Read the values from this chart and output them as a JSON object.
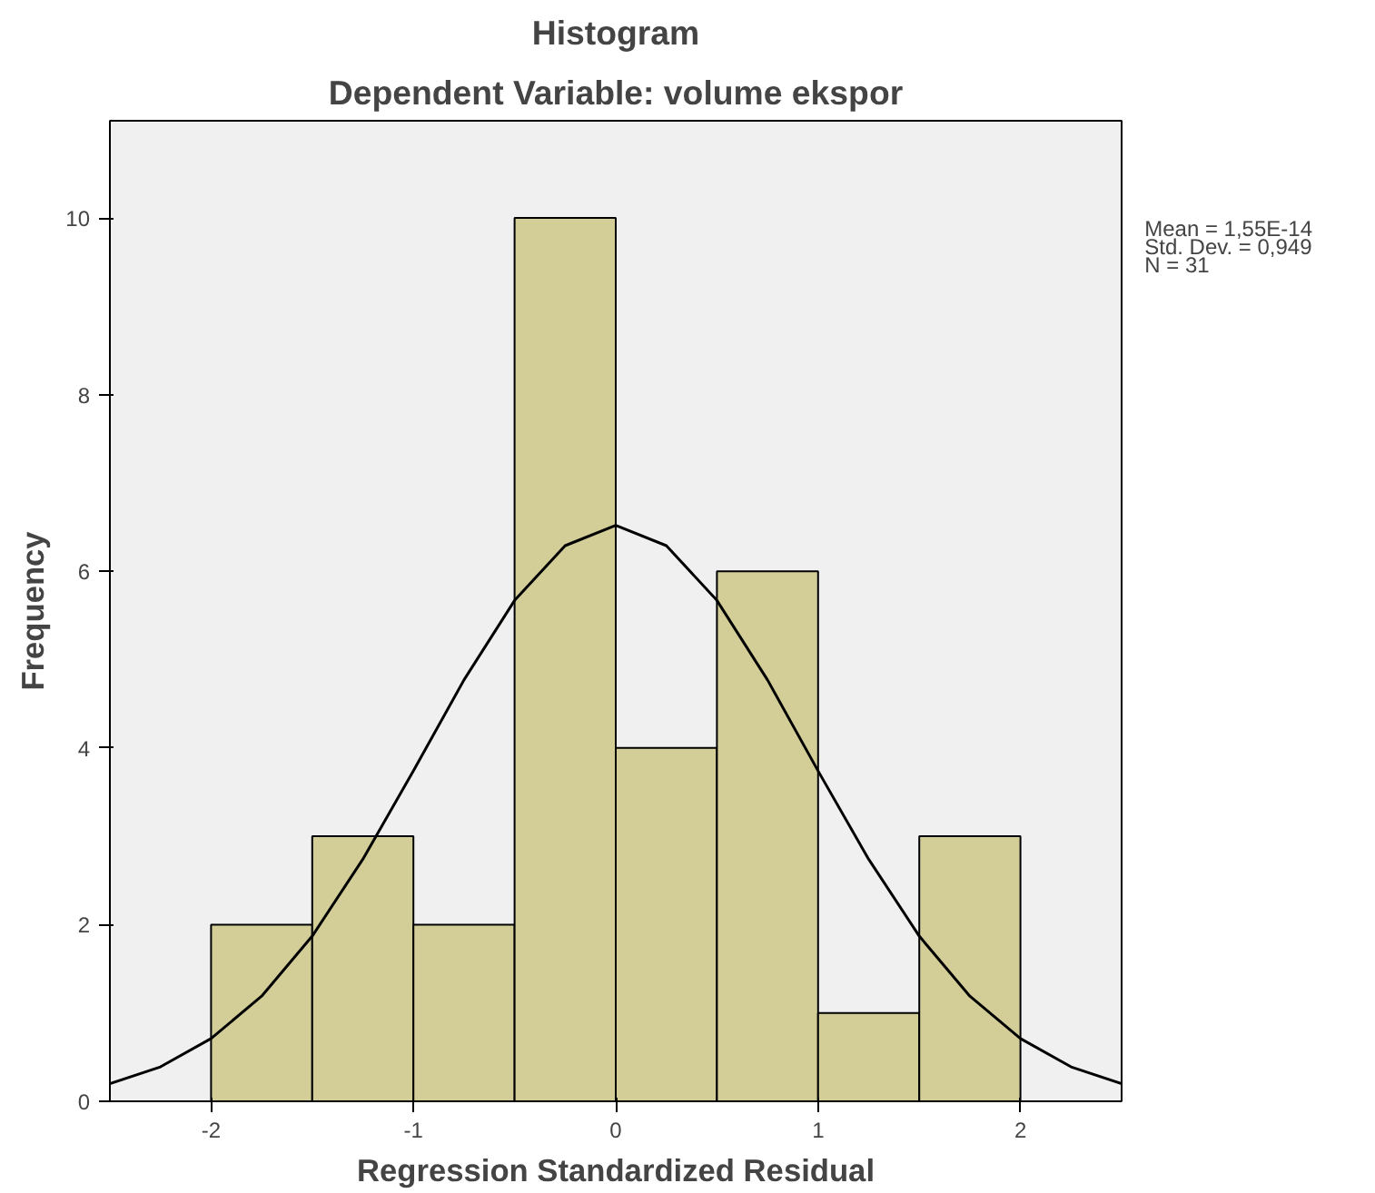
{
  "chart_data": {
    "type": "histogram",
    "title": "Histogram",
    "subtitle": "Dependent Variable: volume ekspor",
    "xlabel": "Regression Standardized Residual",
    "ylabel": "Frequency",
    "bins": [
      -2,
      -1.5,
      -1,
      -0.5,
      0,
      0.5,
      1,
      1.5,
      2
    ],
    "values": [
      2,
      3,
      2,
      10,
      4,
      6,
      1,
      3
    ],
    "color": "#d3ce98",
    "series": [
      {
        "type": "line",
        "color": "#000000",
        "x": [
          -2.5,
          -2.25,
          -2,
          -1.75,
          -1.5,
          -1.25,
          -1,
          -0.75,
          -0.5,
          -0.25,
          0,
          0.25,
          0.5,
          0.75,
          1,
          1.25,
          1.5,
          1.75,
          2,
          2.25,
          2.5
        ],
        "values": [
          0.2,
          0.39,
          0.71,
          1.19,
          1.87,
          2.74,
          3.74,
          4.77,
          5.67,
          6.29,
          6.52,
          6.29,
          5.67,
          4.77,
          3.74,
          2.74,
          1.87,
          1.19,
          0.71,
          0.39,
          0.2
        ]
      }
    ],
    "xlim": [
      -2.5,
      2.5
    ],
    "ylim": [
      0,
      11.1
    ],
    "xticks": [
      -2,
      -1,
      0,
      1,
      2
    ],
    "yticks": [
      0,
      2,
      4,
      6,
      8,
      10
    ],
    "annotations": [
      "Mean = 1,55E-14",
      "Std. Dev. = 0,949",
      "N = 31"
    ],
    "grid": false
  }
}
